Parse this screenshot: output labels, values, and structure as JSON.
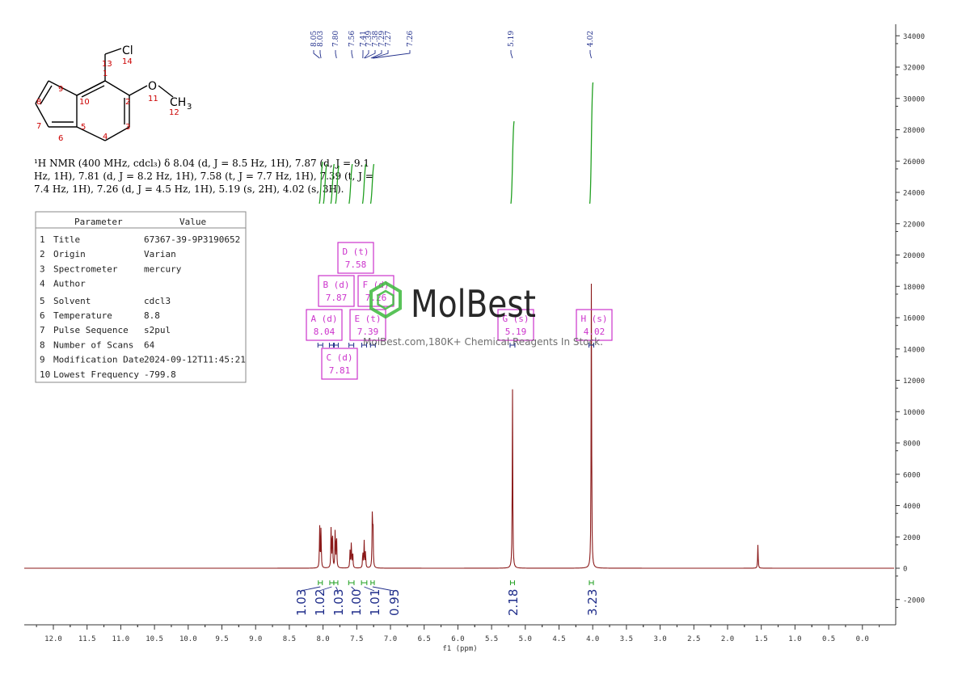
{
  "chart_data": {
    "type": "line",
    "title": "",
    "xlabel": "f1 (ppm)",
    "ylabel": "",
    "x_reversed": true,
    "xlim": [
      12.4,
      -0.6
    ],
    "ylim": [
      -3500,
      35000
    ],
    "x_ticks": [
      "12.0",
      "11.5",
      "11.0",
      "10.5",
      "10.0",
      "9.5",
      "9.0",
      "8.5",
      "8.0",
      "7.5",
      "7.0",
      "6.5",
      "6.0",
      "5.5",
      "5.0",
      "4.5",
      "4.0",
      "3.5",
      "3.0",
      "2.5",
      "2.0",
      "1.5",
      "1.0",
      "0.5",
      "0.0"
    ],
    "y_ticks": [
      "-2000",
      "0",
      "2000",
      "4000",
      "6000",
      "8000",
      "10000",
      "12000",
      "14000",
      "16000",
      "18000",
      "20000",
      "22000",
      "24000",
      "26000",
      "28000",
      "30000",
      "32000",
      "34000"
    ],
    "peaks": [
      {
        "ppm": 8.05,
        "height": 2700
      },
      {
        "ppm": 8.03,
        "height": 2600
      },
      {
        "ppm": 7.88,
        "height": 2700
      },
      {
        "ppm": 7.86,
        "height": 2600
      },
      {
        "ppm": 7.82,
        "height": 2500
      },
      {
        "ppm": 7.8,
        "height": 2400
      },
      {
        "ppm": 7.6,
        "height": 1100
      },
      {
        "ppm": 7.58,
        "height": 1700
      },
      {
        "ppm": 7.56,
        "height": 1100
      },
      {
        "ppm": 7.41,
        "height": 1100
      },
      {
        "ppm": 7.39,
        "height": 1700
      },
      {
        "ppm": 7.37,
        "height": 1100
      },
      {
        "ppm": 7.27,
        "height": 3100
      },
      {
        "ppm": 7.26,
        "height": 3000
      },
      {
        "ppm": 5.19,
        "height": 11600
      },
      {
        "ppm": 4.02,
        "height": 18300
      },
      {
        "ppm": 1.55,
        "height": 1500
      }
    ],
    "peak_labels": [
      "8.05",
      "8.03",
      "7.80",
      "7.56",
      "7.41",
      "7.39",
      "7.38",
      "7.29",
      "7.27",
      "7.26",
      "5.19",
      "4.02"
    ],
    "peak_label_ppm": [
      8.05,
      8.03,
      7.8,
      7.56,
      7.41,
      7.39,
      7.38,
      7.29,
      7.27,
      7.26,
      5.19,
      4.02
    ],
    "integrals": [
      {
        "value": "1.03",
        "from": 8.07,
        "to": 8.01
      },
      {
        "value": "1.02",
        "from": 7.9,
        "to": 7.84
      },
      {
        "value": "1.03",
        "from": 7.84,
        "to": 7.78
      },
      {
        "value": "1.00",
        "from": 7.62,
        "to": 7.54
      },
      {
        "value": "1.01",
        "from": 7.43,
        "to": 7.35
      },
      {
        "value": "0.95",
        "from": 7.29,
        "to": 7.24
      },
      {
        "value": "2.18",
        "from": 5.22,
        "to": 5.16
      },
      {
        "value": "3.23",
        "from": 4.05,
        "to": 3.99
      }
    ],
    "multiplets": [
      {
        "label": "A (d)",
        "shift": "8.04",
        "ppm": 8.04
      },
      {
        "label": "B (d)",
        "shift": "7.87",
        "ppm": 7.87
      },
      {
        "label": "C (d)",
        "shift": "7.81",
        "ppm": 7.81
      },
      {
        "label": "D (t)",
        "shift": "7.58",
        "ppm": 7.58
      },
      {
        "label": "E (t)",
        "shift": "7.39",
        "ppm": 7.39
      },
      {
        "label": "F (d)",
        "shift": "7.26",
        "ppm": 7.26
      },
      {
        "label": "G (s)",
        "shift": "5.19",
        "ppm": 5.19
      },
      {
        "label": "H (s)",
        "shift": "4.02",
        "ppm": 4.02
      }
    ],
    "colors": {
      "spectrum": "#8b1a1a",
      "peak_label": "#1f2d8a",
      "integral": "#1f2d8a",
      "integral_curve": "#22a022",
      "multiplet_box": "#cc33cc",
      "atom_number": "#cc0000",
      "watermark_green": "#3cb83c"
    }
  },
  "nmr_text": "¹H NMR (400 MHz, cdcl₃) δ 8.04 (d, J = 8.5 Hz, 1H), 7.87 (d, J = 9.1 Hz, 1H), 7.81 (d, J = 8.2 Hz, 1H), 7.58 (t, J = 7.7 Hz, 1H), 7.39 (t, J = 7.4 Hz, 1H), 7.26 (d, J = 4.5 Hz, 1H), 5.19 (s, 2H), 4.02 (s, 3H).",
  "nmr_lines": [
    "¹H NMR (400 MHz, cdcl₃) δ 8.04 (d, J = 8.5 Hz, 1H), 7.87 (d, J = 9.1",
    "Hz, 1H), 7.81 (d, J = 8.2 Hz, 1H), 7.58 (t, J = 7.7 Hz, 1H), 7.39 (t, J =",
    "7.4 Hz, 1H), 7.26 (d, J = 4.5 Hz, 1H), 5.19 (s, 2H), 4.02 (s, 3H)."
  ],
  "params": {
    "header_param": "Parameter",
    "header_value": "Value",
    "rows": [
      {
        "n": "1",
        "name": "Title",
        "value": "67367-39-9P3190652"
      },
      {
        "n": "2",
        "name": "Origin",
        "value": "Varian"
      },
      {
        "n": "3",
        "name": "Spectrometer",
        "value": "mercury"
      },
      {
        "n": "4",
        "name": "Author",
        "value": ""
      },
      {
        "n": "5",
        "name": "Solvent",
        "value": "cdcl3"
      },
      {
        "n": "6",
        "name": "Temperature",
        "value": "8.8"
      },
      {
        "n": "7",
        "name": "Pulse Sequence",
        "value": "s2pul"
      },
      {
        "n": "8",
        "name": "Number of Scans",
        "value": "64"
      },
      {
        "n": "9",
        "name": "Modification Date",
        "value": "2024-09-12T11:45:21"
      },
      {
        "n": "10",
        "name": "Lowest Frequency",
        "value": "-799.8"
      }
    ]
  },
  "structure": {
    "atoms": {
      "cl": "Cl",
      "o": "O",
      "ch3": "CH",
      "ch3_sub": "3"
    },
    "numbers": [
      "1",
      "2",
      "3",
      "4",
      "5",
      "6",
      "7",
      "8",
      "9",
      "10",
      "11",
      "12",
      "13",
      "14"
    ]
  },
  "watermark": {
    "brand": "MolBest",
    "tagline": "MolBest.com,180K+ Chemical Reagents In Stock."
  }
}
